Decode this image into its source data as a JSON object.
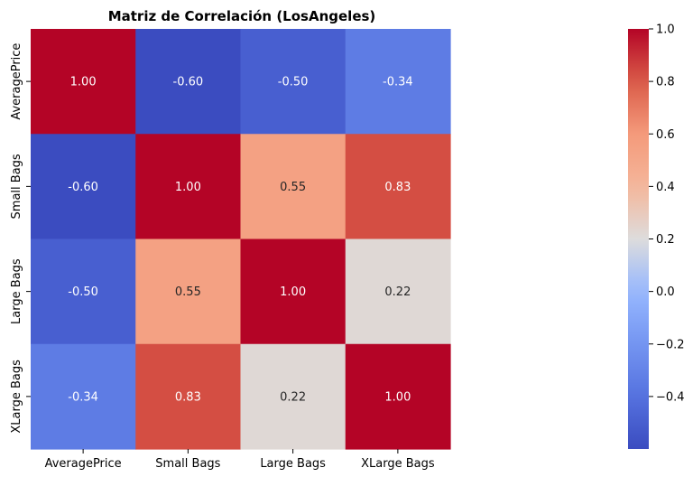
{
  "chart_data": {
    "type": "heatmap",
    "title": "Matriz de Correlación (LosAngeles)",
    "row_labels": [
      "AveragePrice",
      "Small Bags",
      "Large Bags",
      "XLarge Bags"
    ],
    "col_labels": [
      "AveragePrice",
      "Small Bags",
      "Large Bags",
      "XLarge Bags"
    ],
    "values": [
      [
        1.0,
        -0.6,
        -0.5,
        -0.34
      ],
      [
        -0.6,
        1.0,
        0.55,
        0.83
      ],
      [
        -0.5,
        0.55,
        1.0,
        0.22
      ],
      [
        -0.34,
        0.83,
        0.22,
        1.0
      ]
    ],
    "cell_labels": [
      [
        "1.00",
        "-0.60",
        "-0.50",
        "-0.34"
      ],
      [
        "-0.60",
        "1.00",
        "0.55",
        "0.83"
      ],
      [
        "-0.50",
        "0.55",
        "1.00",
        "0.22"
      ],
      [
        "-0.34",
        "0.83",
        "0.22",
        "1.00"
      ]
    ],
    "colormap": "coolwarm",
    "vmin": -0.6,
    "vmax": 1.0,
    "colorbar_ticks": [
      1.0,
      0.8,
      0.6,
      0.4,
      0.2,
      0.0,
      -0.2,
      -0.4
    ],
    "colorbar_tick_labels": [
      "1.0",
      "0.8",
      "0.6",
      "0.4",
      "0.2",
      "0.0",
      "−0.2",
      "−0.4"
    ]
  }
}
